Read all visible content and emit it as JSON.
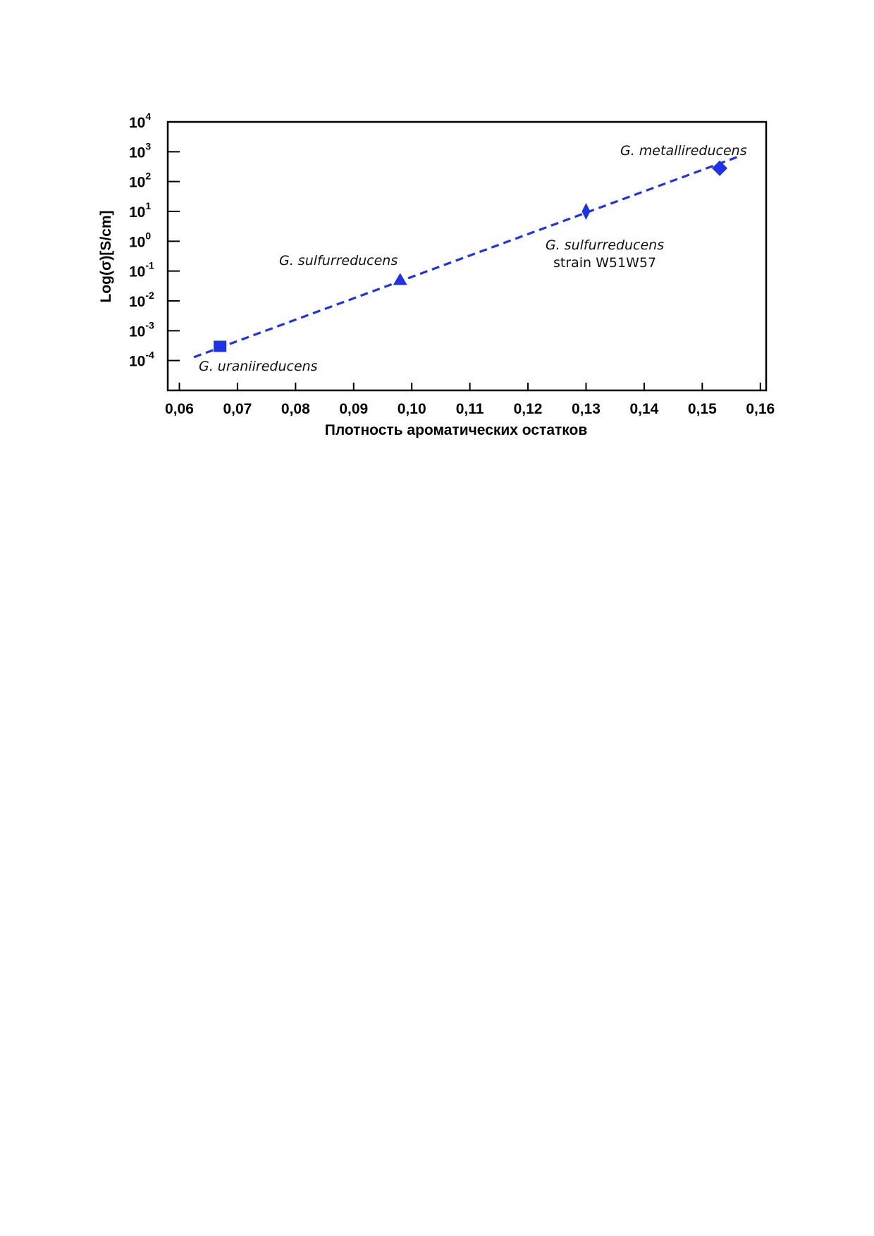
{
  "chart_data": {
    "type": "scatter",
    "title": "",
    "xlabel": "Плотность ароматических остатков",
    "ylabel": "Log(σ)[S/cm]",
    "xlim": [
      0.058,
      0.161
    ],
    "ylim_exp": [
      -5,
      4
    ],
    "y_scale": "log",
    "x_ticks": [
      "0,06",
      "0,07",
      "0,08",
      "0,09",
      "0,10",
      "0,11",
      "0,12",
      "0,13",
      "0,14",
      "0,15",
      "0,16"
    ],
    "x_tick_values": [
      0.06,
      0.07,
      0.08,
      0.09,
      0.1,
      0.11,
      0.12,
      0.13,
      0.14,
      0.15,
      0.16
    ],
    "y_ticks": [
      {
        "base": "10",
        "exp": "-4",
        "value": 0.0001
      },
      {
        "base": "10",
        "exp": "-3",
        "value": 0.001
      },
      {
        "base": "10",
        "exp": "-2",
        "value": 0.01
      },
      {
        "base": "10",
        "exp": "-1",
        "value": 0.1
      },
      {
        "base": "10",
        "exp": "0",
        "value": 1
      },
      {
        "base": "10",
        "exp": "1",
        "value": 10
      },
      {
        "base": "10",
        "exp": "2",
        "value": 100
      },
      {
        "base": "10",
        "exp": "3",
        "value": 1000
      },
      {
        "base": "10",
        "exp": "4",
        "value": 10000
      }
    ],
    "points": [
      {
        "x": 0.067,
        "y": 0.0003,
        "marker": "square",
        "label": [
          "G. uraniireducens"
        ]
      },
      {
        "x": 0.098,
        "y": 0.05,
        "marker": "triangle",
        "label": [
          "G. sulfurreducens"
        ]
      },
      {
        "x": 0.13,
        "y": 10,
        "marker": "thin-diamond",
        "label": [
          "G. sulfurreducens",
          "strain W51W57"
        ]
      },
      {
        "x": 0.153,
        "y": 280,
        "marker": "diamond",
        "label": [
          "G. metallireducens"
        ]
      }
    ],
    "fit_line": {
      "style": "dashed",
      "x": [
        0.0625,
        0.1565
      ],
      "y": [
        0.00013,
        720
      ]
    },
    "grid": false,
    "legend": "none",
    "colors": {
      "marker": "#1f33e6",
      "line": "#1f33e6",
      "axis": "#000000"
    }
  }
}
